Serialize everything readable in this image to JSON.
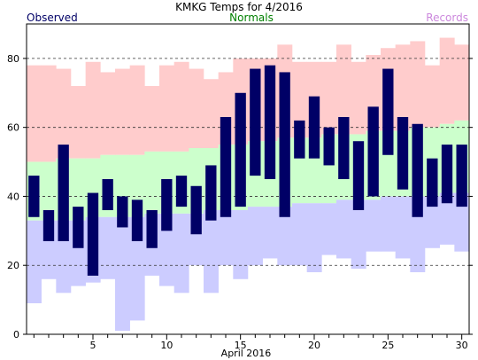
{
  "chart_data": {
    "type": "bar",
    "title": "KMKG Temps for 4/2016",
    "xlabel": "April 2016",
    "ylabel": "",
    "xlim": [
      1,
      30
    ],
    "ylim": [
      0,
      90
    ],
    "legend": [
      {
        "label": "Observed",
        "color": "#000066",
        "placement": "top-left"
      },
      {
        "label": "Normals",
        "color": "#008000",
        "placement": "top-center"
      },
      {
        "label": "Records",
        "color": "#cc88dd",
        "placement": "top-right"
      }
    ],
    "x_ticks": [
      5,
      10,
      15,
      20,
      25,
      30
    ],
    "y_ticks": [
      0,
      20,
      40,
      60,
      80
    ],
    "grid_lines_y": [
      20,
      40,
      60,
      80
    ],
    "days": [
      1,
      2,
      3,
      4,
      5,
      6,
      7,
      8,
      9,
      10,
      11,
      12,
      13,
      14,
      15,
      16,
      17,
      18,
      19,
      20,
      21,
      22,
      23,
      24,
      25,
      26,
      27,
      28,
      29,
      30
    ],
    "series": [
      {
        "name": "Observed",
        "color": "#000066",
        "high": [
          46,
          36,
          55,
          37,
          41,
          45,
          40,
          39,
          36,
          45,
          46,
          43,
          49,
          63,
          70,
          77,
          78,
          76,
          62,
          69,
          60,
          63,
          56,
          66,
          77,
          63,
          61,
          51,
          55,
          55
        ],
        "low": [
          34,
          27,
          27,
          25,
          17,
          36,
          31,
          27,
          25,
          30,
          37,
          29,
          33,
          34,
          37,
          46,
          45,
          34,
          51,
          51,
          49,
          45,
          36,
          40,
          52,
          42,
          34,
          37,
          38,
          37
        ]
      },
      {
        "name": "Normals",
        "color": "#ccffcc",
        "high": [
          50,
          50,
          51,
          51,
          51,
          52,
          52,
          52,
          53,
          53,
          53,
          54,
          54,
          55,
          55,
          56,
          56,
          57,
          57,
          57,
          58,
          58,
          58,
          59,
          59,
          59,
          60,
          60,
          61,
          62
        ],
        "low": [
          33,
          33,
          33,
          33,
          34,
          34,
          34,
          34,
          35,
          35,
          35,
          35,
          36,
          36,
          36,
          37,
          37,
          37,
          38,
          38,
          38,
          39,
          39,
          39,
          40,
          40,
          40,
          40,
          41,
          41
        ]
      },
      {
        "name": "Records",
        "color": "#ffcccc",
        "high": [
          78,
          78,
          77,
          72,
          79,
          76,
          77,
          78,
          72,
          78,
          79,
          77,
          74,
          76,
          80,
          80,
          80,
          84,
          79,
          79,
          79,
          84,
          79,
          81,
          83,
          84,
          85,
          78,
          86,
          84
        ],
        "low": [
          9,
          16,
          12,
          14,
          15,
          16,
          1,
          4,
          17,
          14,
          12,
          20,
          12,
          20,
          16,
          20,
          22,
          20,
          20,
          18,
          23,
          22,
          19,
          24,
          24,
          22,
          18,
          25,
          26,
          24
        ],
        "low_fill_color": "#ccccff"
      }
    ]
  }
}
